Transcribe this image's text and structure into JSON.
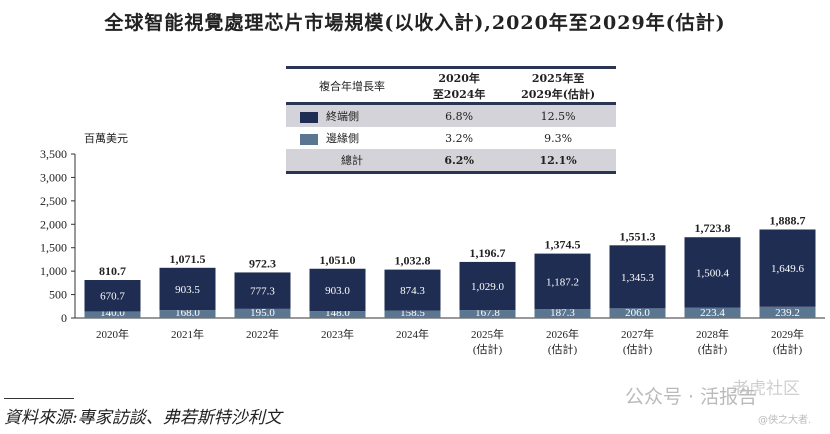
{
  "chart_data": {
    "type": "bar",
    "stacked": true,
    "title": "全球智能視覺處理芯片市場規模(以收入計),2020年至2029年(估計)",
    "ylabel": "百萬美元",
    "ylim": [
      0,
      3500
    ],
    "yticks": [
      "0",
      "500",
      "1,000",
      "1,500",
      "2,000",
      "2,500",
      "3,000",
      "3,500"
    ],
    "ytick_values": [
      0,
      500,
      1000,
      1500,
      2000,
      2500,
      3000,
      3500
    ],
    "categories": [
      [
        "2020年"
      ],
      [
        "2021年"
      ],
      [
        "2022年"
      ],
      [
        "2023年"
      ],
      [
        "2024年"
      ],
      [
        "2025年",
        "(估計)"
      ],
      [
        "2026年",
        "(估計)"
      ],
      [
        "2027年",
        "(估計)"
      ],
      [
        "2028年",
        "(估計)"
      ],
      [
        "2029年",
        "(估計)"
      ]
    ],
    "series": [
      {
        "name": "邊緣側",
        "color": "#5b7691",
        "values": [
          140.0,
          168.0,
          195.0,
          148.0,
          158.5,
          167.8,
          187.3,
          206.0,
          223.4,
          239.2
        ],
        "labels": [
          "140.0",
          "168.0",
          "195.0",
          "148.0",
          "158.5",
          "167.8",
          "187.3",
          "206.0",
          "223.4",
          "239.2"
        ]
      },
      {
        "name": "終端側",
        "color": "#1f2d52",
        "values": [
          670.7,
          903.5,
          777.3,
          903.0,
          874.3,
          1029.0,
          1187.2,
          1345.3,
          1500.4,
          1649.6
        ],
        "labels": [
          "670.7",
          "903.5",
          "777.3",
          "903.0",
          "874.3",
          "1,029.0",
          "1,187.2",
          "1,345.3",
          "1,500.4",
          "1,649.6"
        ]
      }
    ],
    "totals": [
      810.7,
      1071.5,
      972.3,
      1051.0,
      1032.8,
      1196.7,
      1374.5,
      1551.3,
      1723.8,
      1888.7
    ],
    "total_labels": [
      "810.7",
      "1,071.5",
      "972.3",
      "1,051.0",
      "1,032.8",
      "1,196.7",
      "1,374.5",
      "1,551.3",
      "1,723.8",
      "1,888.7"
    ],
    "grid": false,
    "legend": {
      "placement": "top-center",
      "header": [
        "複合年增長率",
        "2020年\n至2024年",
        "2025年至\n2029年(估計)"
      ],
      "header_a": [
        "2020年",
        "至2024年"
      ],
      "header_b": [
        "2025年至",
        "2029年(估計)"
      ],
      "rows": [
        {
          "label": "終端側",
          "color": "#1f2d52",
          "a": "6.8%",
          "b": "12.5%"
        },
        {
          "label": "邊緣側",
          "color": "#5b7691",
          "a": "3.2%",
          "b": "9.3%"
        },
        {
          "label": "總計",
          "a": "6.2%",
          "b": "12.1%"
        }
      ]
    }
  },
  "source": "資料來源:專家訪談、弗若斯特沙利文",
  "watermark": {
    "main": "公众号 · 活报告",
    "top": "老虎社区",
    "handle": "@侠之大者."
  }
}
